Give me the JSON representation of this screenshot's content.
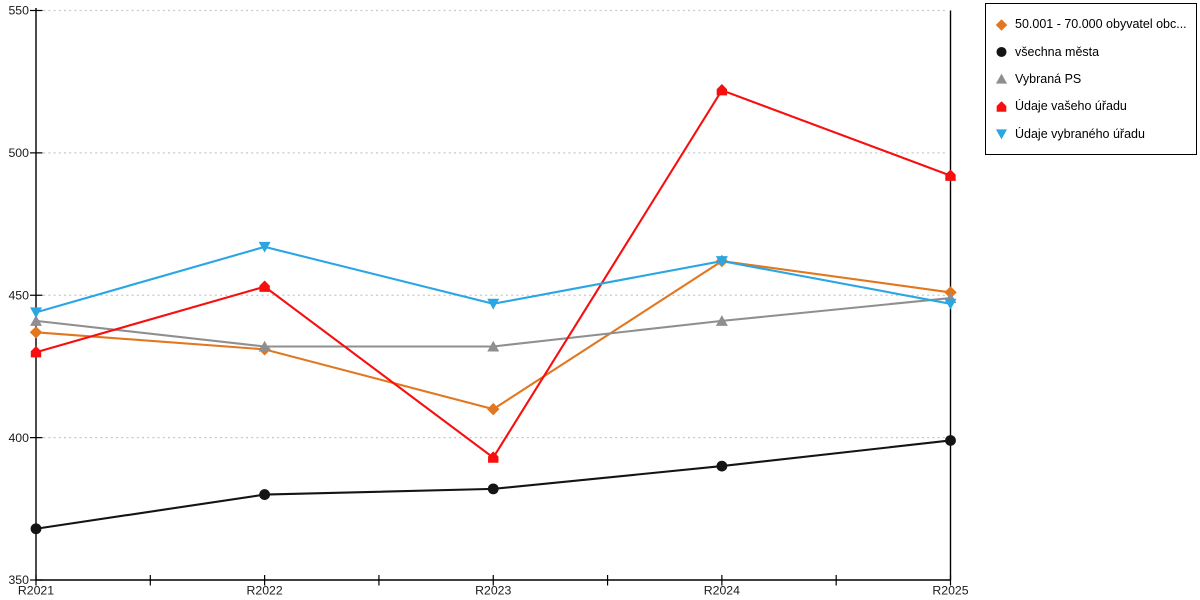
{
  "chart_data": {
    "type": "line",
    "categories": [
      "R2021",
      "R2022",
      "R2023",
      "R2024",
      "R2025"
    ],
    "series": [
      {
        "label": "50.001 - 70.000 obyvatel obc...",
        "color": "#e2771f",
        "marker": "diamond",
        "values": [
          437,
          431,
          410,
          462,
          451
        ]
      },
      {
        "label": "všechna města",
        "color": "#141414",
        "marker": "circle",
        "values": [
          368,
          380,
          382,
          390,
          399
        ]
      },
      {
        "label": "Vybraná PS",
        "color": "#8f8f8f",
        "marker": "triangle-up",
        "values": [
          441,
          432,
          432,
          441,
          449
        ]
      },
      {
        "label": "Údaje vašeho úřadu",
        "color": "#f70f0f",
        "marker": "pentagon-up",
        "values": [
          430,
          453,
          393,
          522,
          492
        ]
      },
      {
        "label": "Údaje vybraného úřadu",
        "color": "#2aa7e3",
        "marker": "triangle-down",
        "values": [
          444,
          467,
          447,
          462,
          447
        ]
      }
    ],
    "ylim": [
      350,
      550
    ],
    "yticks": [
      350,
      400,
      450,
      500,
      550
    ],
    "grid": "dotted-horizontal",
    "legend_position": "top-right"
  },
  "colors": {
    "background": "#ffffff",
    "axis": "#000000",
    "gridline": "#c8c8c8",
    "tick_label": "#1a1a1a",
    "legend_border": "#000000"
  }
}
